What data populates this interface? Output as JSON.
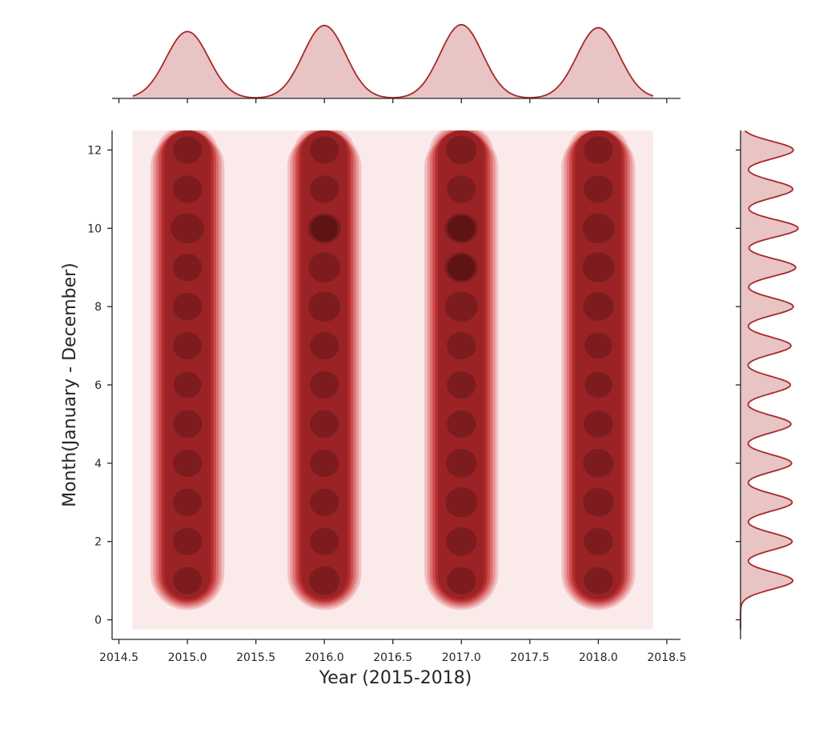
{
  "chart_data": {
    "type": "kde-joint",
    "title": "",
    "xlabel": "Year (2015-2018)",
    "ylabel": "Month(January - December)",
    "xlim": [
      2014.45,
      2018.6
    ],
    "ylim": [
      -0.5,
      12.5
    ],
    "x_ticks": [
      2014.5,
      2015.0,
      2015.5,
      2016.0,
      2016.5,
      2017.0,
      2017.5,
      2018.0,
      2018.5
    ],
    "x_tick_labels": [
      "2014.5",
      "2015.0",
      "2015.5",
      "2016.0",
      "2016.5",
      "2017.0",
      "2017.5",
      "2018.0",
      "2018.5"
    ],
    "y_ticks": [
      0,
      2,
      4,
      6,
      8,
      10,
      12
    ],
    "y_tick_labels": [
      "0",
      "2",
      "4",
      "6",
      "8",
      "10",
      "12"
    ],
    "kde_extent": {
      "x": [
        2014.6,
        2018.4
      ],
      "y": [
        -0.25,
        12.5
      ]
    },
    "years": [
      2015,
      2016,
      2017,
      2018
    ],
    "months": [
      1,
      2,
      3,
      4,
      5,
      6,
      7,
      8,
      9,
      10,
      11,
      12
    ],
    "density_weights": [
      [
        1.0,
        1.0,
        1.0,
        1.0,
        1.0,
        0.95,
        1.0,
        1.0,
        1.0,
        1.2,
        1.0,
        1.0
      ],
      [
        1.05,
        1.0,
        1.0,
        1.0,
        1.0,
        1.0,
        1.0,
        1.1,
        1.1,
        1.35,
        1.0,
        1.0
      ],
      [
        1.0,
        1.05,
        1.1,
        1.05,
        1.0,
        1.0,
        1.0,
        1.15,
        1.3,
        1.4,
        1.0,
        1.05
      ],
      [
        1.0,
        1.0,
        1.05,
        1.05,
        1.0,
        0.95,
        0.95,
        1.05,
        1.1,
        1.1,
        1.0,
        1.0
      ]
    ],
    "grid": false,
    "colors": {
      "levels": [
        "#fbeaea",
        "#f3c1c1",
        "#e89a9b",
        "#db7173",
        "#cc4a4c",
        "#b52d2f",
        "#9b2325",
        "#7c1c1e",
        "#5e1415",
        "#3f0c0d",
        "#1f0506"
      ],
      "marginal_line": "#a52a2a",
      "marginal_fill": "#e8c4c4"
    },
    "x_marginal": {
      "peaks": [
        2015.0,
        2016.0,
        2017.0,
        2018.0
      ],
      "heights": [
        0.88,
        0.96,
        0.97,
        0.93
      ]
    },
    "y_marginal": {
      "months": [
        1,
        2,
        3,
        4,
        5,
        6,
        7,
        8,
        9,
        10,
        11,
        12
      ],
      "density": [
        0.88,
        0.87,
        0.87,
        0.86,
        0.85,
        0.84,
        0.85,
        0.89,
        0.93,
        0.97,
        0.88,
        0.89
      ]
    }
  }
}
